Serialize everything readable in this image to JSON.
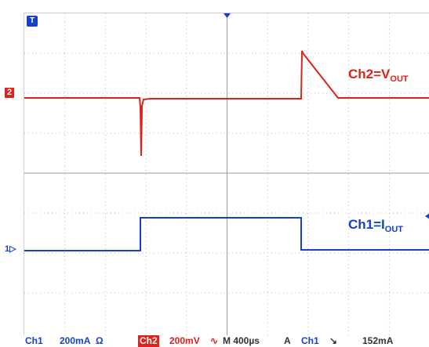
{
  "traces": {
    "ch2_label_main": "Ch2=V",
    "ch2_label_sub": "OUT",
    "ch1_label_main": "Ch1=I",
    "ch1_label_sub": "OUT",
    "ch2_color": "#e0201b",
    "ch1_color": "#1640c9"
  },
  "markers": {
    "ch2": "2",
    "ch1": "1",
    "trigger": "T"
  },
  "status_bar": {
    "ch1_name": "Ch1",
    "ch1_scale": "200mA",
    "ch1_coupling": "Ω",
    "ch2_name": "Ch2",
    "ch2_scale": "200mV",
    "ch2_coupling": "∿",
    "timebase": "M 400µs",
    "trigger_mode": "A",
    "trigger_source": "Ch1",
    "trigger_slope": "↘",
    "trigger_level": "152mA"
  }
}
